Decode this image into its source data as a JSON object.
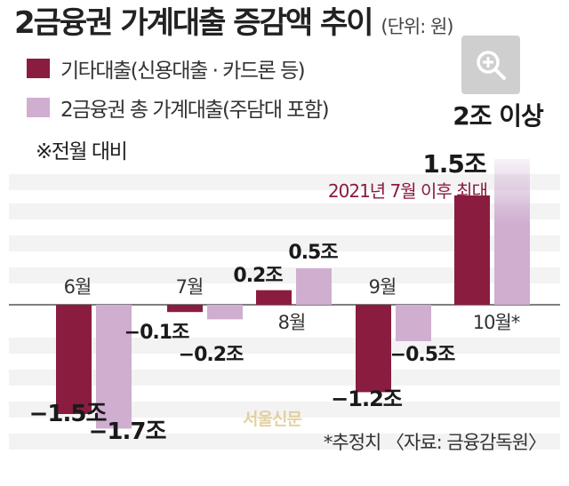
{
  "chart_data": {
    "type": "bar",
    "title": "2금융권 가계대출 증감액 추이",
    "unit_note": "(단위: 원)",
    "note": "※전월 대비",
    "categories": [
      "6월",
      "7월",
      "8월",
      "9월",
      "10월*"
    ],
    "series": [
      {
        "name": "기타대출(신용대출 · 카드론 등)",
        "color": "#8a1c3f",
        "values": [
          -1.5,
          -0.1,
          0.2,
          -1.2,
          1.5
        ],
        "value_labels": [
          "-1.5조",
          "-0.1조",
          "0.2조",
          "-1.2조",
          "1.5조"
        ]
      },
      {
        "name": "2금융권 총 가계대출(주담대 포함)",
        "color": "#cfaed0",
        "values": [
          -1.7,
          -0.2,
          0.5,
          -0.5,
          2.0
        ],
        "value_labels": [
          "-1.7조",
          "-0.2조",
          "0.5조",
          "-0.5조",
          "2조 이상"
        ]
      }
    ],
    "annotation": "2021년 7월 이후 최대",
    "annotation_color": "#8a1c3f",
    "ylabel": "",
    "xlabel": "",
    "grid": true,
    "source": "*추정치 〈자료: 금융감독원〉",
    "watermark": "서울신문"
  },
  "icons": {
    "zoom": "zoom-in-icon"
  }
}
